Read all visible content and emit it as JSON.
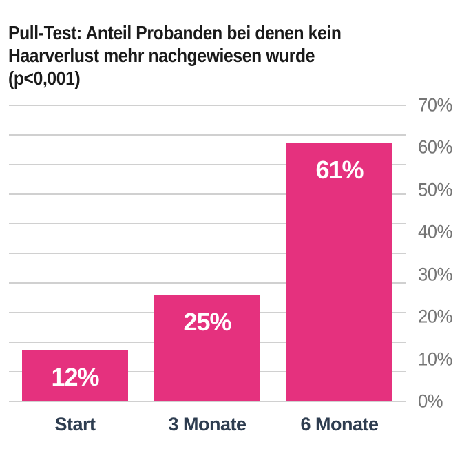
{
  "title": {
    "lines": [
      "Pull-Test: Anteil Probanden bei denen kein",
      "Haarverlust mehr nachgewiesen wurde",
      "(p<0,001)"
    ]
  },
  "chart_data": {
    "type": "bar",
    "title": "Pull-Test: Anteil Probanden bei denen kein Haarverlust mehr nachgewiesen wurde (p<0,001)",
    "categories": [
      "Start",
      "3 Monate",
      "6 Monate"
    ],
    "values": [
      12,
      25,
      61
    ],
    "value_labels": [
      "12%",
      "25%",
      "61%"
    ],
    "xlabel": "",
    "ylabel": "",
    "ylim": [
      0,
      70
    ],
    "y_ticks": [
      70,
      60,
      50,
      40,
      30,
      20,
      10,
      0
    ],
    "y_tick_labels": [
      "70%",
      "60%",
      "50%",
      "40%",
      "30%",
      "20%",
      "10%",
      "0%"
    ],
    "gridline_count": 11,
    "grid": true,
    "legend": false,
    "axis_side": "right",
    "colors": {
      "bar": "#e5317e",
      "value_label": "#ffffff",
      "axis_label": "#757575",
      "category_label": "#2e3d50",
      "gridline": "#d0d0d0",
      "title": "#1a1a1a",
      "background": "#ffffff"
    }
  }
}
